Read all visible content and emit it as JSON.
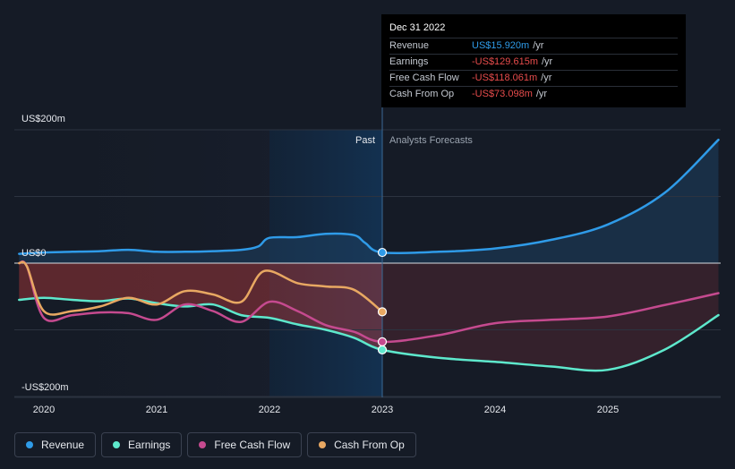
{
  "chart_data": {
    "type": "line",
    "y_unit": "US$m",
    "ylim": [
      -200,
      200
    ],
    "y_ticks": [
      {
        "value": 200,
        "label": "US$200m"
      },
      {
        "value": 0,
        "label": "US$0"
      },
      {
        "value": -200,
        "label": "-US$200m"
      }
    ],
    "x_ticks": [
      "2020",
      "2021",
      "2022",
      "2023",
      "2024",
      "2025"
    ],
    "xlim": [
      2019.78,
      2025.98
    ],
    "divider_x": 2023.0,
    "past_label": "Past",
    "forecast_label": "Analysts Forecasts",
    "series": [
      {
        "name": "Revenue",
        "color": "#2f9be8",
        "fill": "above",
        "x": [
          2019.78,
          2020.0,
          2020.25,
          2020.5,
          2020.75,
          2021.0,
          2021.25,
          2021.5,
          2021.75,
          2021.9,
          2022.0,
          2022.25,
          2022.5,
          2022.75,
          2022.85,
          2023.0,
          2023.5,
          2024.0,
          2024.5,
          2025.0,
          2025.5,
          2025.98
        ],
        "y": [
          14,
          16,
          17,
          18,
          20,
          17,
          17,
          18,
          20,
          25,
          38,
          39,
          44,
          42,
          30,
          16,
          17,
          22,
          35,
          58,
          105,
          185
        ]
      },
      {
        "name": "Earnings",
        "color": "#5ee8cc",
        "x": [
          2019.78,
          2020.0,
          2020.25,
          2020.5,
          2020.75,
          2021.0,
          2021.25,
          2021.5,
          2021.75,
          2022.0,
          2022.25,
          2022.5,
          2022.75,
          2023.0,
          2023.5,
          2024.0,
          2024.5,
          2025.0,
          2025.5,
          2025.98
        ],
        "y": [
          -55,
          -52,
          -55,
          -57,
          -53,
          -60,
          -65,
          -62,
          -78,
          -82,
          -92,
          -100,
          -112,
          -130,
          -142,
          -148,
          -155,
          -160,
          -130,
          -78
        ]
      },
      {
        "name": "Free Cash Flow",
        "color": "#c54a8f",
        "x": [
          2019.78,
          2019.85,
          2020.0,
          2020.25,
          2020.5,
          2020.75,
          2021.0,
          2021.25,
          2021.5,
          2021.75,
          2022.0,
          2022.25,
          2022.5,
          2022.75,
          2023.0,
          2023.5,
          2024.0,
          2024.5,
          2025.0,
          2025.5,
          2025.98
        ],
        "y": [
          0,
          -5,
          -82,
          -78,
          -74,
          -75,
          -85,
          -62,
          -72,
          -88,
          -58,
          -72,
          -93,
          -103,
          -118,
          -108,
          -90,
          -85,
          -80,
          -63,
          -45
        ]
      },
      {
        "name": "Cash From Op",
        "color": "#e8a862",
        "x": [
          2019.78,
          2019.85,
          2020.0,
          2020.25,
          2020.5,
          2020.75,
          2021.0,
          2021.25,
          2021.5,
          2021.75,
          2021.95,
          2022.25,
          2022.5,
          2022.75,
          2023.0
        ],
        "y": [
          0,
          -5,
          -72,
          -72,
          -65,
          -52,
          -62,
          -42,
          -47,
          -58,
          -12,
          -30,
          -35,
          -40,
          -73
        ]
      }
    ]
  },
  "tooltip": {
    "date": "Dec 31 2022",
    "rows": [
      {
        "label": "Revenue",
        "value": "US$15.920m",
        "unit": "/yr"
      },
      {
        "label": "Earnings",
        "value": "-US$129.615m",
        "unit": "/yr"
      },
      {
        "label": "Free Cash Flow",
        "value": "-US$118.061m",
        "unit": "/yr"
      },
      {
        "label": "Cash From Op",
        "value": "-US$73.098m",
        "unit": "/yr"
      }
    ]
  },
  "legend": [
    {
      "label": "Revenue",
      "color": "#2f9be8"
    },
    {
      "label": "Earnings",
      "color": "#5ee8cc"
    },
    {
      "label": "Free Cash Flow",
      "color": "#c54a8f"
    },
    {
      "label": "Cash From Op",
      "color": "#e8a862"
    }
  ]
}
